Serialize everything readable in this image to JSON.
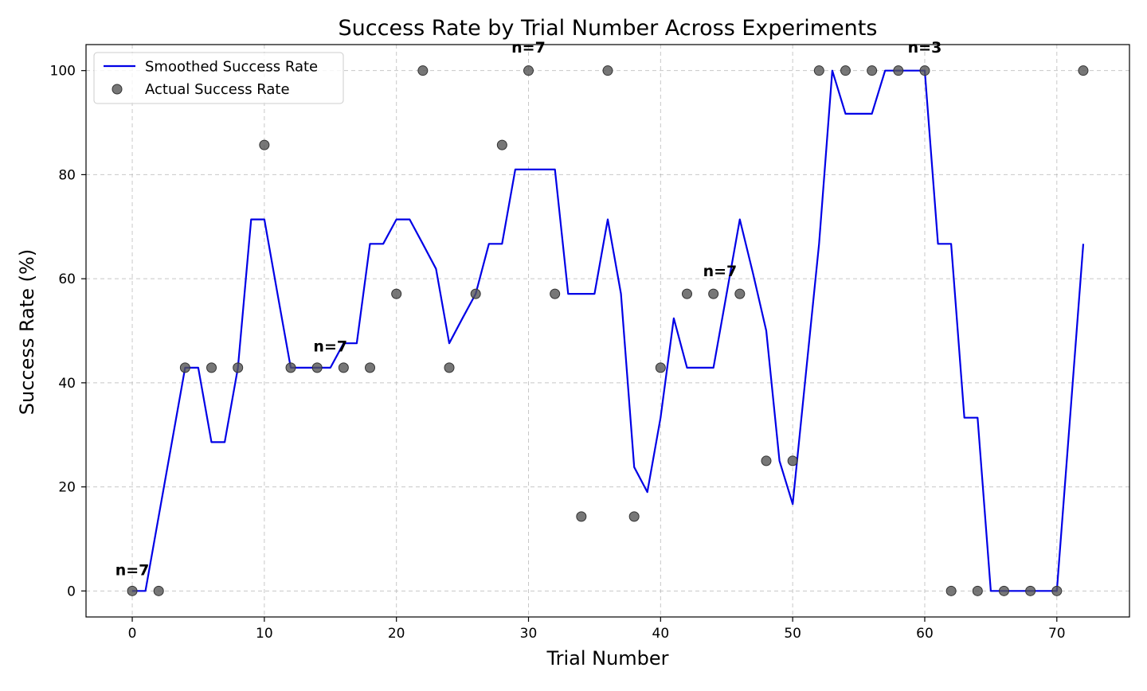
{
  "chart_data": {
    "type": "line",
    "title": "Success Rate by Trial Number Across Experiments",
    "xlabel": "Trial Number",
    "ylabel": "Success Rate (%)",
    "xlim": [
      -3.5,
      75.5
    ],
    "ylim": [
      -5,
      105
    ],
    "x_ticks": [
      0,
      10,
      20,
      30,
      40,
      50,
      60,
      70
    ],
    "y_ticks": [
      0,
      20,
      40,
      60,
      80,
      100
    ],
    "grid": true,
    "legend_position": "top-left",
    "colors": {
      "line": "#0000e6",
      "points": "#555555",
      "grid": "#b0b0b0"
    },
    "series": [
      {
        "name": "Smoothed Success Rate",
        "kind": "line",
        "x": [
          0,
          1,
          2,
          3,
          4,
          5,
          6,
          7,
          8,
          9,
          10,
          11,
          12,
          13,
          14,
          15,
          16,
          17,
          18,
          19,
          20,
          21,
          22,
          23,
          24,
          25,
          26,
          27,
          28,
          29,
          30,
          31,
          32,
          33,
          34,
          35,
          36,
          37,
          38,
          39,
          40,
          41,
          42,
          43,
          44,
          45,
          46,
          47,
          48,
          49,
          50,
          51,
          52,
          53,
          54,
          55,
          56,
          57,
          58,
          59,
          60,
          61,
          62,
          63,
          64,
          65,
          66,
          67,
          68,
          69,
          70,
          71,
          72
        ],
        "y": [
          0,
          0,
          14.3,
          28.6,
          42.9,
          42.9,
          28.6,
          28.6,
          42.9,
          71.4,
          71.4,
          57.1,
          42.9,
          42.9,
          42.9,
          42.9,
          47.6,
          47.6,
          66.7,
          66.7,
          71.4,
          71.4,
          66.7,
          61.9,
          47.6,
          52.4,
          57.1,
          66.7,
          66.7,
          81,
          81,
          81,
          81,
          57.1,
          57.1,
          57.1,
          71.4,
          57.1,
          23.8,
          19,
          33.3,
          52.4,
          42.9,
          42.9,
          42.9,
          57.1,
          71.4,
          61,
          50,
          25,
          16.7,
          41.7,
          66.7,
          100,
          91.7,
          91.7,
          91.7,
          100,
          100,
          100,
          100,
          66.7,
          66.7,
          33.3,
          33.3,
          0,
          0,
          0,
          0,
          0,
          0,
          33.3,
          66.7
        ]
      },
      {
        "name": "Actual Success Rate",
        "kind": "scatter",
        "x": [
          0,
          2,
          4,
          6,
          8,
          10,
          12,
          14,
          16,
          18,
          20,
          22,
          24,
          26,
          28,
          30,
          32,
          34,
          36,
          38,
          40,
          42,
          44,
          46,
          48,
          50,
          52,
          54,
          56,
          58,
          60,
          62,
          64,
          66,
          68,
          70,
          72
        ],
        "y": [
          0,
          0,
          42.9,
          42.9,
          42.9,
          85.7,
          42.9,
          42.9,
          42.9,
          42.9,
          57.1,
          100,
          42.9,
          57.1,
          85.7,
          100,
          57.1,
          14.3,
          100,
          14.3,
          42.9,
          57.1,
          57.1,
          57.1,
          25,
          25,
          100,
          100,
          100,
          100,
          100,
          0,
          0,
          0,
          0,
          0,
          100
        ]
      }
    ],
    "annotations": [
      {
        "text": "n=7",
        "x": 0,
        "y": 3
      },
      {
        "text": "n=7",
        "x": 15,
        "y": 46
      },
      {
        "text": "n=7",
        "x": 30,
        "y": 103.5
      },
      {
        "text": "n=7",
        "x": 44.5,
        "y": 60.5
      },
      {
        "text": "n=3",
        "x": 60,
        "y": 103.5
      }
    ]
  }
}
